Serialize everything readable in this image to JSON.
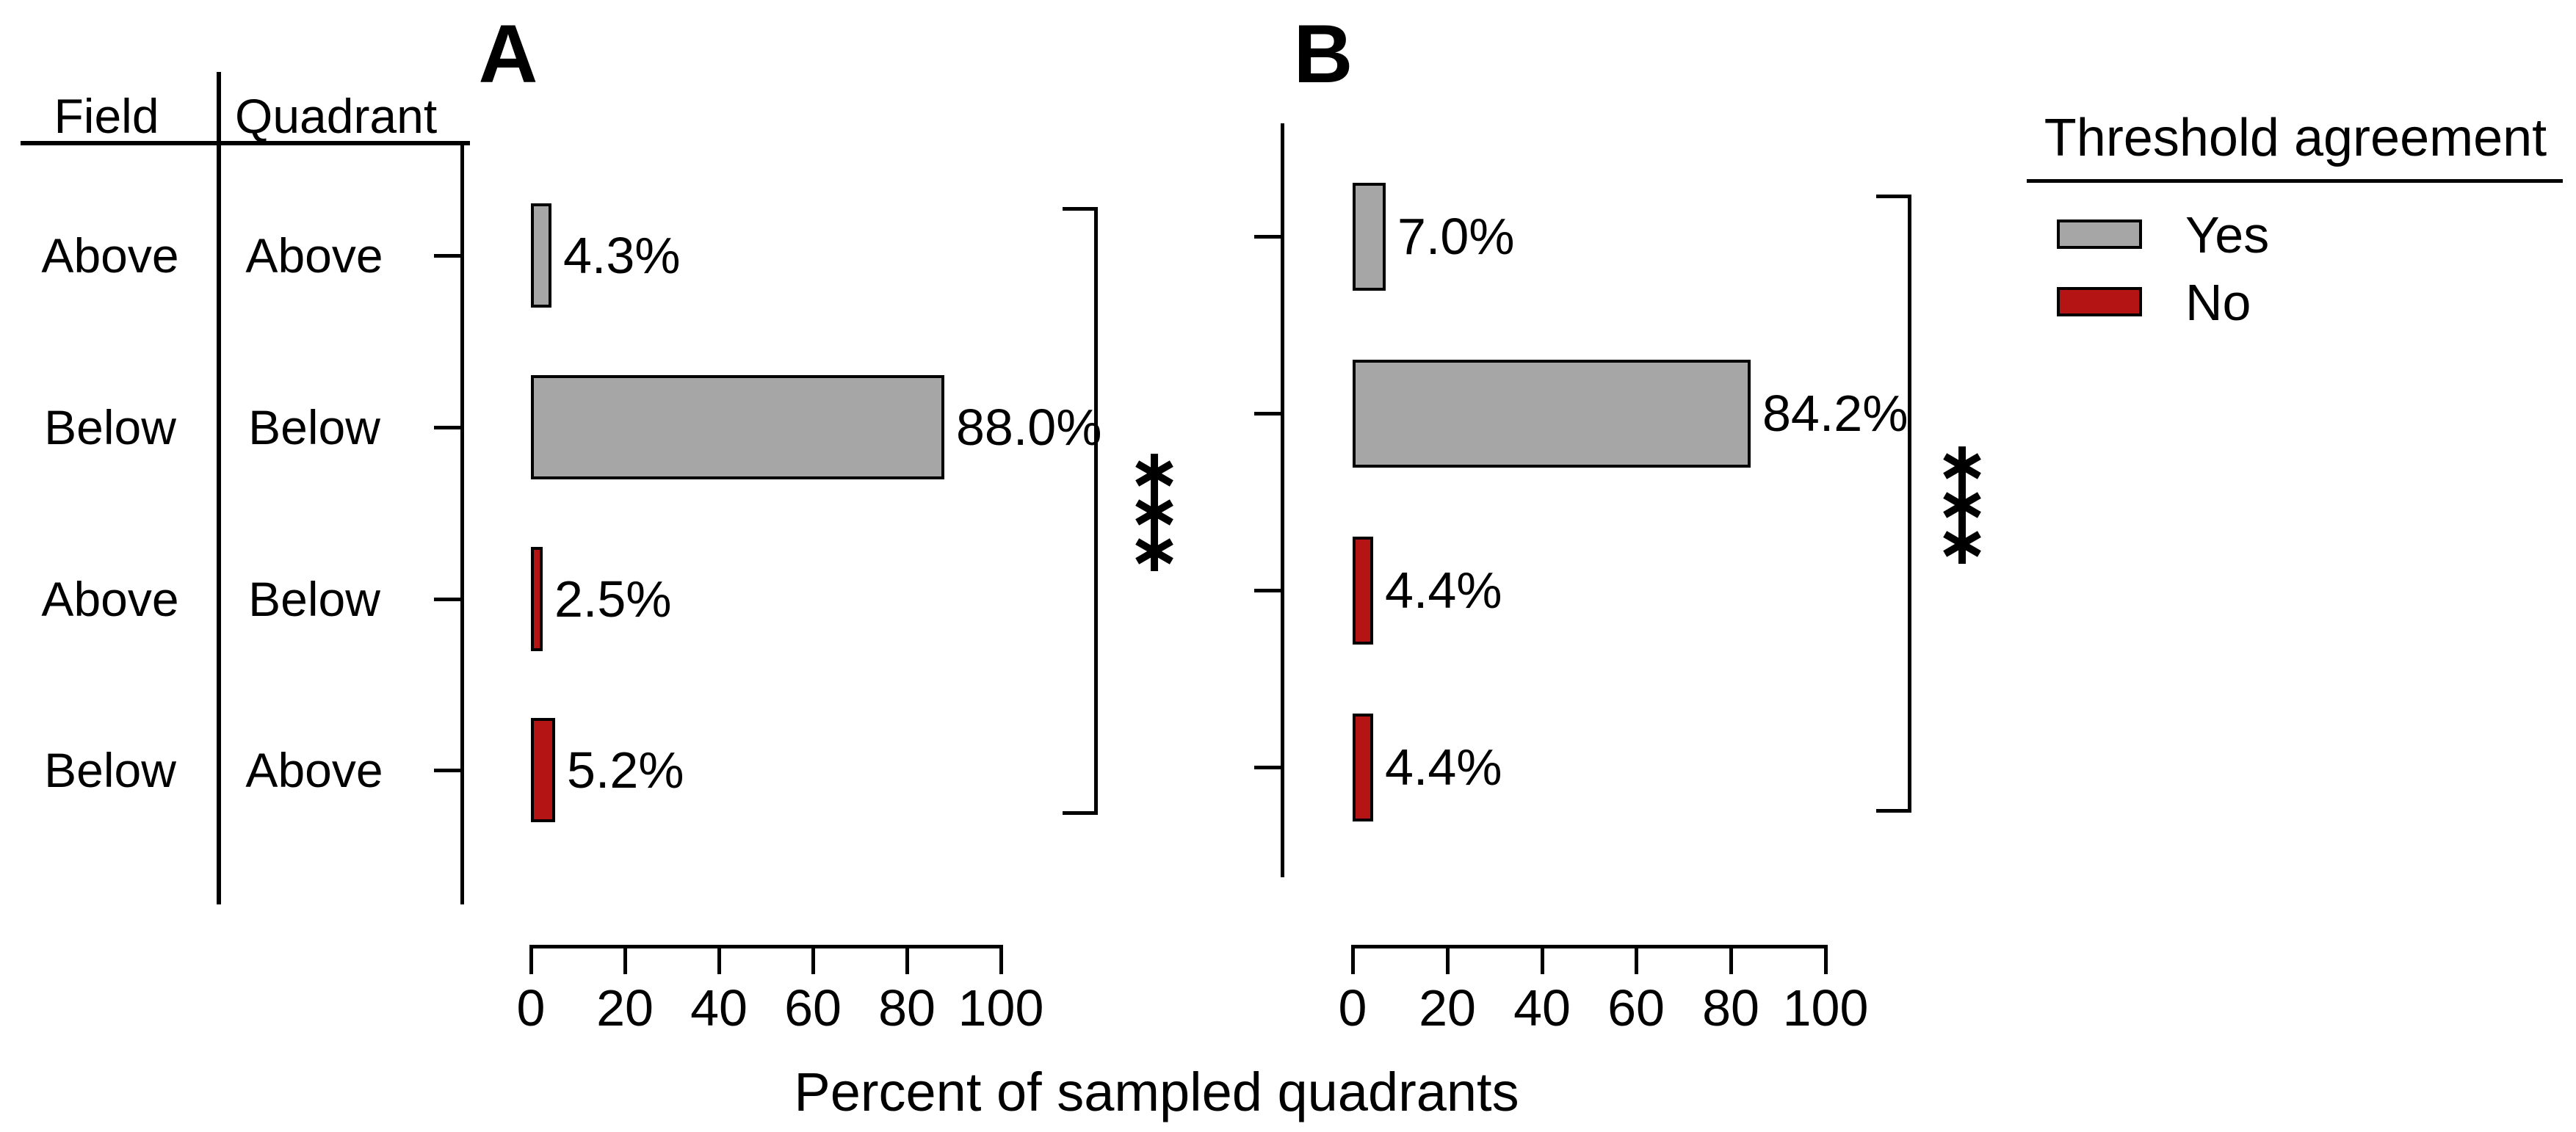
{
  "figure": {
    "xlabel": "Percent of sampled quadrants"
  },
  "table": {
    "col1_header": "Field",
    "col2_header": "Quadrant",
    "rows": [
      {
        "field": "Above",
        "quadrant": "Above"
      },
      {
        "field": "Below",
        "quadrant": "Below"
      },
      {
        "field": "Above",
        "quadrant": "Below"
      },
      {
        "field": "Below",
        "quadrant": "Above"
      }
    ]
  },
  "legend": {
    "title": "Threshold agreement",
    "items": [
      {
        "label": "Yes",
        "color": "#a6a6a6"
      },
      {
        "label": "No",
        "color": "#b41414"
      }
    ]
  },
  "chart_data": [
    {
      "type": "bar",
      "orientation": "horizontal",
      "panel_label": "A",
      "categories": [
        "Above / Above",
        "Below / Below",
        "Above / Below",
        "Below / Above"
      ],
      "values": [
        4.3,
        88.0,
        2.5,
        5.2
      ],
      "value_labels": [
        "4.3%",
        "88.0%",
        "2.5%",
        "5.2%"
      ],
      "agreement": [
        "Yes",
        "Yes",
        "No",
        "No"
      ],
      "xlim": [
        0,
        100
      ],
      "xticks": [
        0,
        20,
        40,
        60,
        80,
        100
      ],
      "significance": "***",
      "grid": "off",
      "xlabel_shared": "Percent of sampled quadrants"
    },
    {
      "type": "bar",
      "orientation": "horizontal",
      "panel_label": "B",
      "categories": [
        "Above / Above",
        "Below / Below",
        "Above / Below",
        "Below / Above"
      ],
      "values": [
        7.0,
        84.2,
        4.4,
        4.4
      ],
      "value_labels": [
        "7.0%",
        "84.2%",
        "4.4%",
        "4.4%"
      ],
      "agreement": [
        "Yes",
        "Yes",
        "No",
        "No"
      ],
      "xlim": [
        0,
        100
      ],
      "xticks": [
        0,
        20,
        40,
        60,
        80,
        100
      ],
      "significance": "***",
      "grid": "off",
      "xlabel_shared": "Percent of sampled quadrants"
    }
  ]
}
